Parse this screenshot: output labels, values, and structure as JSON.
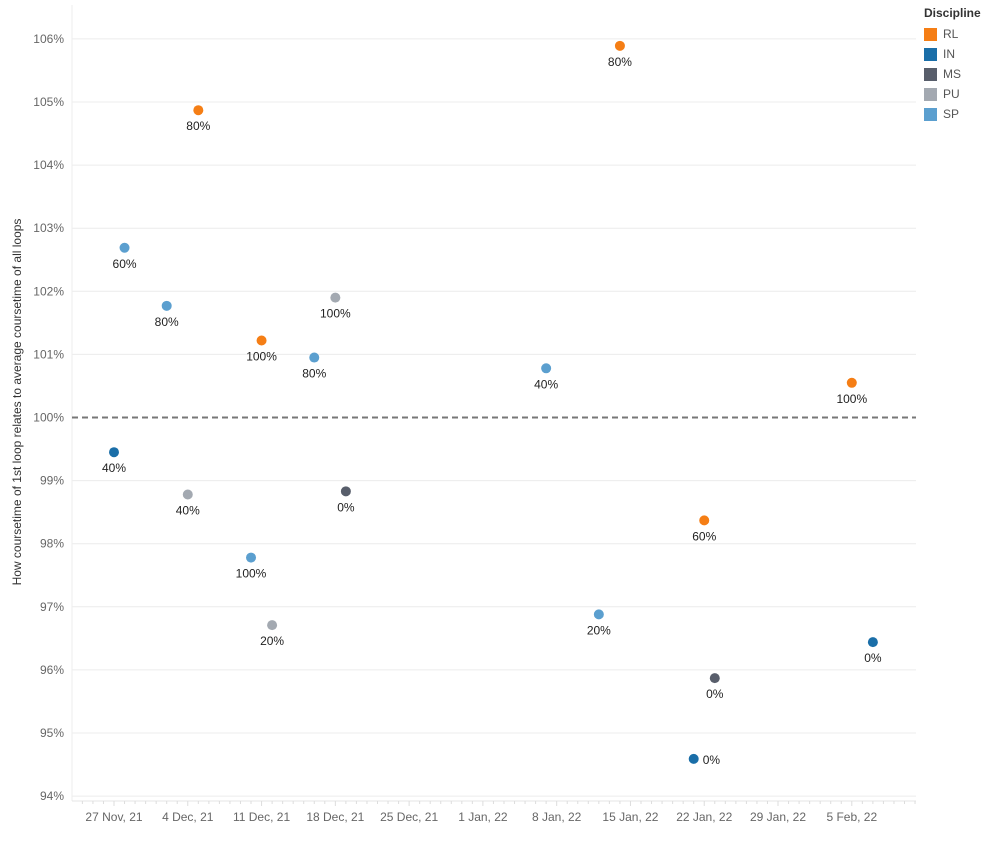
{
  "chart_data": {
    "type": "scatter",
    "ylabel": "How coursetime of 1st loop relates to average coursetime of all loops",
    "ylim": [
      93.95,
      106.5
    ],
    "yticks": [
      94,
      95,
      96,
      97,
      98,
      99,
      100,
      101,
      102,
      103,
      104,
      105,
      106
    ],
    "ytick_labels": [
      "94%",
      "95%",
      "96%",
      "97%",
      "98%",
      "99%",
      "100%",
      "101%",
      "102%",
      "103%",
      "104%",
      "105%",
      "106%"
    ],
    "x_start": "27 Nov, 21",
    "xtick_days": [
      0,
      7,
      14,
      21,
      28,
      35,
      42,
      49,
      56,
      63,
      70
    ],
    "xtick_labels": [
      "27 Nov, 21",
      "4 Dec, 21",
      "11 Dec, 21",
      "18 Dec, 21",
      "25 Dec, 21",
      "1 Jan, 22",
      "8 Jan, 22",
      "15 Jan, 22",
      "22 Jan, 22",
      "29 Jan, 22",
      "5 Feb, 22"
    ],
    "reference_line": 100,
    "legend": {
      "title": "Discipline",
      "placement": "top-right",
      "entries": [
        {
          "name": "RL",
          "color": "#f57e15"
        },
        {
          "name": "IN",
          "color": "#1a6ea8"
        },
        {
          "name": "MS",
          "color": "#585e6b"
        },
        {
          "name": "PU",
          "color": "#a3a9b1"
        },
        {
          "name": "SP",
          "color": "#5b9fcf"
        }
      ]
    },
    "points": [
      {
        "day": 0,
        "y": 99.45,
        "d": "IN",
        "label": "40%"
      },
      {
        "day": 1,
        "y": 102.69,
        "d": "SP",
        "label": "60%"
      },
      {
        "day": 5,
        "y": 101.77,
        "d": "SP",
        "label": "80%"
      },
      {
        "day": 8,
        "y": 104.87,
        "d": "RL",
        "label": "80%"
      },
      {
        "day": 7,
        "y": 98.78,
        "d": "PU",
        "label": "40%"
      },
      {
        "day": 14,
        "y": 101.22,
        "d": "RL",
        "label": "100%"
      },
      {
        "day": 13,
        "y": 97.78,
        "d": "SP",
        "label": "100%"
      },
      {
        "day": 15,
        "y": 96.71,
        "d": "PU",
        "label": "20%"
      },
      {
        "day": 19,
        "y": 100.95,
        "d": "SP",
        "label": "80%"
      },
      {
        "day": 21,
        "y": 101.9,
        "d": "PU",
        "label": "100%"
      },
      {
        "day": 22,
        "y": 98.83,
        "d": "MS",
        "label": "0%"
      },
      {
        "day": 41,
        "y": 100.78,
        "d": "SP",
        "label": "40%"
      },
      {
        "day": 48,
        "y": 105.89,
        "d": "RL",
        "label": "80%"
      },
      {
        "day": 46,
        "y": 96.88,
        "d": "SP",
        "label": "20%"
      },
      {
        "day": 56,
        "y": 98.37,
        "d": "RL",
        "label": "60%"
      },
      {
        "day": 57,
        "y": 95.87,
        "d": "MS",
        "label": "0%"
      },
      {
        "day": 55,
        "y": 94.59,
        "d": "IN",
        "label": "0%",
        "label_pos": "right"
      },
      {
        "day": 70,
        "y": 100.55,
        "d": "RL",
        "label": "100%"
      },
      {
        "day": 72,
        "y": 96.44,
        "d": "IN",
        "label": "0%"
      }
    ]
  }
}
